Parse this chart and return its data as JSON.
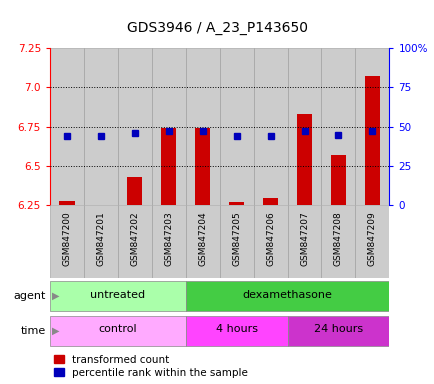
{
  "title": "GDS3946 / A_23_P143650",
  "samples": [
    "GSM847200",
    "GSM847201",
    "GSM847202",
    "GSM847203",
    "GSM847204",
    "GSM847205",
    "GSM847206",
    "GSM847207",
    "GSM847208",
    "GSM847209"
  ],
  "transformed_counts": [
    6.28,
    6.24,
    6.43,
    6.74,
    6.74,
    6.27,
    6.3,
    6.83,
    6.57,
    7.07
  ],
  "percentile_ranks": [
    44,
    44,
    46,
    47,
    47,
    44,
    44,
    47,
    45,
    47
  ],
  "ylim": [
    6.25,
    7.25
  ],
  "yticks": [
    6.25,
    6.5,
    6.75,
    7.0,
    7.25
  ],
  "y2lim": [
    0,
    100
  ],
  "y2ticks": [
    0,
    25,
    50,
    75,
    100
  ],
  "bar_color": "#cc0000",
  "dot_color": "#0000bb",
  "col_bg": "#cccccc",
  "untreated_color": "#aaffaa",
  "dex_color": "#44cc44",
  "control_color": "#ffaaff",
  "h4_color": "#ff44ff",
  "h24_color": "#cc33cc",
  "title_fontsize": 10,
  "tick_fontsize": 7.5,
  "sample_fontsize": 6.5,
  "row_fontsize": 8
}
